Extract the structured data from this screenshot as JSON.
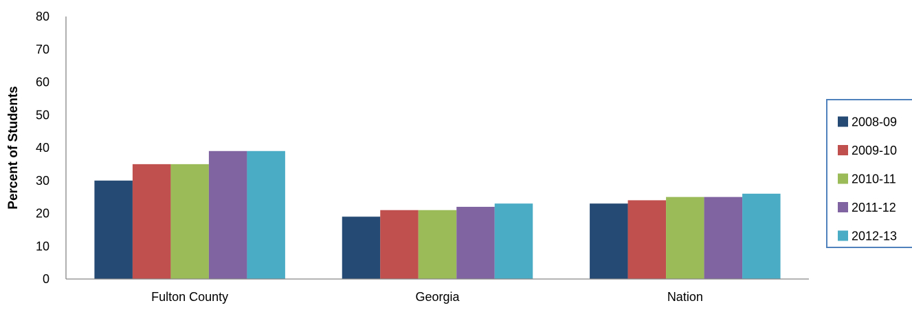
{
  "chart_data": {
    "type": "bar",
    "title": "",
    "xlabel": "",
    "ylabel": "Percent of Students",
    "ylim": [
      0,
      80
    ],
    "yticks": [
      0,
      10,
      20,
      30,
      40,
      50,
      60,
      70,
      80
    ],
    "grid": false,
    "legend_position": "right",
    "categories": [
      "Fulton County",
      "Georgia",
      "Nation"
    ],
    "series": [
      {
        "name": "2008-09",
        "color": "#254a73",
        "values": [
          30,
          19,
          23
        ]
      },
      {
        "name": "2009-10",
        "color": "#c0504d",
        "values": [
          35,
          21,
          24
        ]
      },
      {
        "name": "2010-11",
        "color": "#9bbb59",
        "values": [
          35,
          21,
          25
        ]
      },
      {
        "name": "2011-12",
        "color": "#8064a2",
        "values": [
          39,
          22,
          25
        ]
      },
      {
        "name": "2012-13",
        "color": "#4bacc6",
        "values": [
          39,
          23,
          26
        ]
      }
    ]
  },
  "legend_border_color": "#4f81bd"
}
